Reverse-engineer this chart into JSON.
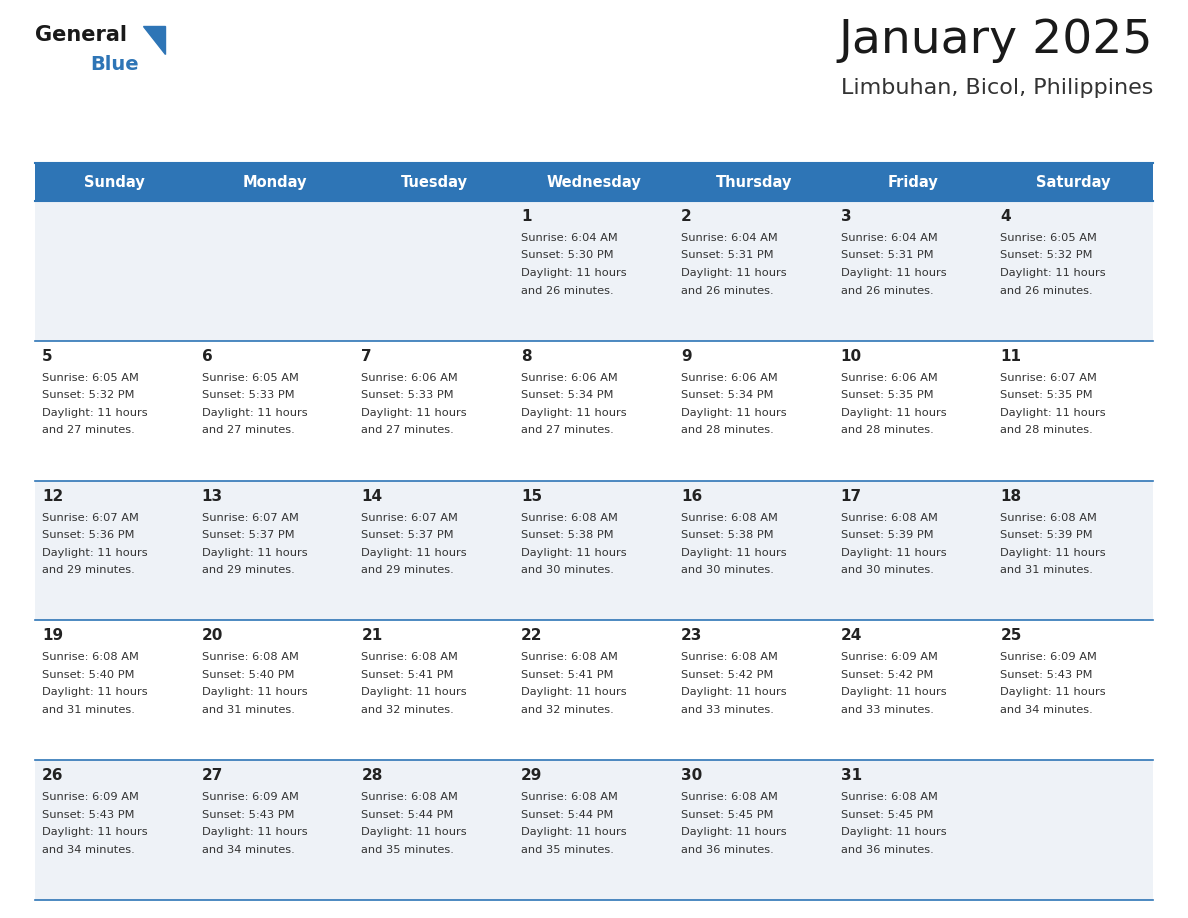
{
  "title": "January 2025",
  "subtitle": "Limbuhan, Bicol, Philippines",
  "days_of_week": [
    "Sunday",
    "Monday",
    "Tuesday",
    "Wednesday",
    "Thursday",
    "Friday",
    "Saturday"
  ],
  "header_bg": "#2e75b6",
  "header_text": "#ffffff",
  "row_bg_light": "#eef2f7",
  "row_bg_white": "#ffffff",
  "border_color": "#2e75b6",
  "day_number_color": "#222222",
  "content_color": "#333333",
  "title_color": "#1a1a1a",
  "subtitle_color": "#333333",
  "calendar": [
    [
      null,
      null,
      null,
      {
        "day": 1,
        "sunrise": "6:04 AM",
        "sunset": "5:30 PM",
        "daylight": "11 hours and 26 minutes"
      },
      {
        "day": 2,
        "sunrise": "6:04 AM",
        "sunset": "5:31 PM",
        "daylight": "11 hours and 26 minutes"
      },
      {
        "day": 3,
        "sunrise": "6:04 AM",
        "sunset": "5:31 PM",
        "daylight": "11 hours and 26 minutes"
      },
      {
        "day": 4,
        "sunrise": "6:05 AM",
        "sunset": "5:32 PM",
        "daylight": "11 hours and 26 minutes"
      }
    ],
    [
      {
        "day": 5,
        "sunrise": "6:05 AM",
        "sunset": "5:32 PM",
        "daylight": "11 hours and 27 minutes"
      },
      {
        "day": 6,
        "sunrise": "6:05 AM",
        "sunset": "5:33 PM",
        "daylight": "11 hours and 27 minutes"
      },
      {
        "day": 7,
        "sunrise": "6:06 AM",
        "sunset": "5:33 PM",
        "daylight": "11 hours and 27 minutes"
      },
      {
        "day": 8,
        "sunrise": "6:06 AM",
        "sunset": "5:34 PM",
        "daylight": "11 hours and 27 minutes"
      },
      {
        "day": 9,
        "sunrise": "6:06 AM",
        "sunset": "5:34 PM",
        "daylight": "11 hours and 28 minutes"
      },
      {
        "day": 10,
        "sunrise": "6:06 AM",
        "sunset": "5:35 PM",
        "daylight": "11 hours and 28 minutes"
      },
      {
        "day": 11,
        "sunrise": "6:07 AM",
        "sunset": "5:35 PM",
        "daylight": "11 hours and 28 minutes"
      }
    ],
    [
      {
        "day": 12,
        "sunrise": "6:07 AM",
        "sunset": "5:36 PM",
        "daylight": "11 hours and 29 minutes"
      },
      {
        "day": 13,
        "sunrise": "6:07 AM",
        "sunset": "5:37 PM",
        "daylight": "11 hours and 29 minutes"
      },
      {
        "day": 14,
        "sunrise": "6:07 AM",
        "sunset": "5:37 PM",
        "daylight": "11 hours and 29 minutes"
      },
      {
        "day": 15,
        "sunrise": "6:08 AM",
        "sunset": "5:38 PM",
        "daylight": "11 hours and 30 minutes"
      },
      {
        "day": 16,
        "sunrise": "6:08 AM",
        "sunset": "5:38 PM",
        "daylight": "11 hours and 30 minutes"
      },
      {
        "day": 17,
        "sunrise": "6:08 AM",
        "sunset": "5:39 PM",
        "daylight": "11 hours and 30 minutes"
      },
      {
        "day": 18,
        "sunrise": "6:08 AM",
        "sunset": "5:39 PM",
        "daylight": "11 hours and 31 minutes"
      }
    ],
    [
      {
        "day": 19,
        "sunrise": "6:08 AM",
        "sunset": "5:40 PM",
        "daylight": "11 hours and 31 minutes"
      },
      {
        "day": 20,
        "sunrise": "6:08 AM",
        "sunset": "5:40 PM",
        "daylight": "11 hours and 31 minutes"
      },
      {
        "day": 21,
        "sunrise": "6:08 AM",
        "sunset": "5:41 PM",
        "daylight": "11 hours and 32 minutes"
      },
      {
        "day": 22,
        "sunrise": "6:08 AM",
        "sunset": "5:41 PM",
        "daylight": "11 hours and 32 minutes"
      },
      {
        "day": 23,
        "sunrise": "6:08 AM",
        "sunset": "5:42 PM",
        "daylight": "11 hours and 33 minutes"
      },
      {
        "day": 24,
        "sunrise": "6:09 AM",
        "sunset": "5:42 PM",
        "daylight": "11 hours and 33 minutes"
      },
      {
        "day": 25,
        "sunrise": "6:09 AM",
        "sunset": "5:43 PM",
        "daylight": "11 hours and 34 minutes"
      }
    ],
    [
      {
        "day": 26,
        "sunrise": "6:09 AM",
        "sunset": "5:43 PM",
        "daylight": "11 hours and 34 minutes"
      },
      {
        "day": 27,
        "sunrise": "6:09 AM",
        "sunset": "5:43 PM",
        "daylight": "11 hours and 34 minutes"
      },
      {
        "day": 28,
        "sunrise": "6:08 AM",
        "sunset": "5:44 PM",
        "daylight": "11 hours and 35 minutes"
      },
      {
        "day": 29,
        "sunrise": "6:08 AM",
        "sunset": "5:44 PM",
        "daylight": "11 hours and 35 minutes"
      },
      {
        "day": 30,
        "sunrise": "6:08 AM",
        "sunset": "5:45 PM",
        "daylight": "11 hours and 36 minutes"
      },
      {
        "day": 31,
        "sunrise": "6:08 AM",
        "sunset": "5:45 PM",
        "daylight": "11 hours and 36 minutes"
      },
      null
    ]
  ],
  "fig_width": 11.88,
  "fig_height": 9.18,
  "dpi": 100
}
